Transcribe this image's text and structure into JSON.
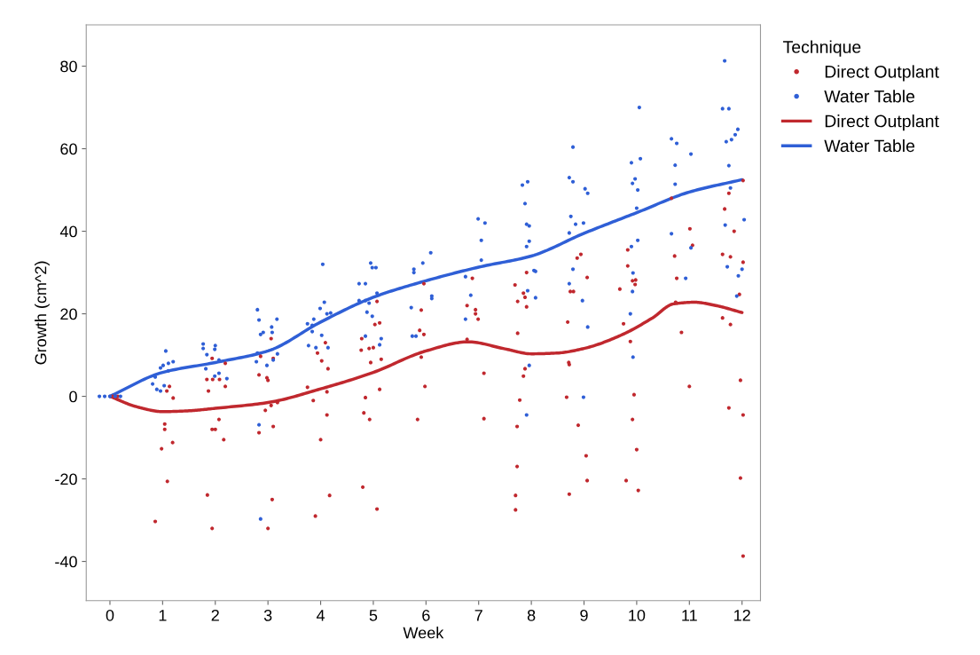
{
  "chart_data": {
    "type": "scatter",
    "xlabel": "Week",
    "ylabel": "Growth (cm^2)",
    "legend_title": "Technique",
    "legend": "top right",
    "grid": false,
    "xlim": [
      -0.45,
      12.35
    ],
    "xticks": [
      0,
      1,
      2,
      3,
      4,
      5,
      6,
      7,
      8,
      9,
      10,
      11,
      12
    ],
    "ylim": [
      -49.5,
      90
    ],
    "yticks": [
      -40,
      -20,
      0,
      20,
      40,
      60,
      80
    ],
    "series": [
      {
        "name": "Direct Outplant",
        "marker": "circle",
        "color": "#c0282e",
        "x": [
          0.05,
          0.1,
          0.15,
          0.86,
          1.09,
          0.98,
          1.04,
          1.04,
          1.19,
          1.2,
          1.13,
          1.08,
          1.94,
          1.85,
          1.94,
          2.0,
          2.07,
          2.16,
          1.87,
          1.84,
          1.95,
          2.08,
          2.19,
          1.94,
          2.19,
          3.0,
          3.08,
          2.83,
          3.1,
          2.95,
          3.06,
          3.18,
          2.83,
          2.98,
          3.0,
          3.06,
          2.86,
          3.1,
          3.9,
          4.17,
          4.0,
          4.12,
          4.12,
          3.86,
          3.75,
          4.02,
          4.09,
          4.14,
          3.94,
          4.8,
          5.07,
          4.82,
          4.93,
          4.85,
          5.12,
          4.95,
          5.15,
          4.77,
          4.92,
          5.0,
          5.03,
          5.12,
          4.78,
          5.07,
          5.84,
          5.98,
          5.91,
          5.88,
          5.96,
          5.91,
          5.96,
          7.1,
          7.1,
          6.78,
          6.78,
          6.94,
          6.94,
          6.99,
          6.88,
          7.7,
          7.7,
          7.73,
          7.73,
          7.78,
          7.85,
          7.88,
          7.74,
          7.74,
          7.69,
          7.85,
          7.88,
          7.91,
          7.91,
          8.72,
          8.67,
          8.89,
          9.04,
          9.06,
          8.72,
          8.69,
          8.74,
          8.8,
          9.06,
          8.87,
          8.94,
          8.71,
          9.88,
          9.95,
          9.92,
          10.0,
          9.8,
          10.03,
          9.75,
          9.68,
          9.83,
          9.83,
          9.92,
          9.98,
          9.97,
          11.0,
          10.85,
          10.74,
          10.66,
          11.01,
          11.06,
          10.76,
          10.72,
          11.97,
          12.02,
          11.97,
          11.75,
          12.02,
          11.63,
          11.78,
          11.63,
          11.78,
          12.02,
          11.85,
          11.67,
          11.75,
          12.02,
          11.95
        ],
        "values": [
          0,
          0,
          0,
          -30.3,
          -20.6,
          -12.7,
          -8,
          -6.7,
          -11.2,
          -0.4,
          2.4,
          1.3,
          -32,
          -23.9,
          -8,
          -8,
          -5.6,
          -10.5,
          1.3,
          4.1,
          4.1,
          4.1,
          2.4,
          9.2,
          8,
          -32,
          -25,
          -8.8,
          -7.3,
          -3.4,
          -2.2,
          -1.5,
          5.2,
          4.5,
          3.9,
          14,
          9.7,
          9.2,
          -29,
          -24,
          -10.5,
          -4.5,
          1.1,
          -1,
          2.2,
          8.6,
          13,
          6.7,
          10.5,
          -22,
          -27.3,
          -4,
          -5.6,
          -0.3,
          1.7,
          8.2,
          9,
          11.2,
          11.6,
          11.8,
          17.4,
          17.8,
          14,
          23,
          -5.6,
          2.4,
          9.5,
          16,
          15,
          20.9,
          27.3,
          -5.4,
          5.6,
          13.8,
          22,
          21,
          20,
          18.7,
          28.6,
          -27.5,
          -24,
          -17,
          -7.3,
          -0.9,
          4.9,
          6.7,
          15.3,
          23,
          27,
          25,
          24,
          21.7,
          30,
          7.7,
          -0.2,
          -7,
          -14.4,
          -20.4,
          -23.7,
          18,
          25.4,
          25.4,
          28.8,
          33.5,
          34.4,
          8.2,
          13.3,
          0.4,
          -5.6,
          -12.9,
          -20.4,
          -22.8,
          17.6,
          26,
          31.6,
          35.5,
          28,
          28.2,
          27.1,
          2.4,
          15.5,
          22.8,
          48,
          40.6,
          36.6,
          28.6,
          34,
          -19.8,
          -38.7,
          3.9,
          -2.8,
          -4.5,
          19,
          17.4,
          34.4,
          33.8,
          32.5,
          40,
          45.4,
          49.2,
          52.3,
          24.7
        ]
      },
      {
        "name": "Water Table",
        "marker": "circle",
        "color": "#2f5fd6",
        "x": [
          -0.2,
          -0.1,
          0,
          0.1,
          0.2,
          1.06,
          1.2,
          1.01,
          0.96,
          1.11,
          1.11,
          0.86,
          0.81,
          0.89,
          1.03,
          0.96,
          1.77,
          2.0,
          1.77,
          1.99,
          1.84,
          2.07,
          1.82,
          1.99,
          2.07,
          2.22,
          2.8,
          2.83,
          3.17,
          3.07,
          3.08,
          2.86,
          2.91,
          2.8,
          3.18,
          2.78,
          3.1,
          2.83,
          2.86,
          2.98,
          4.04,
          4.07,
          3.99,
          4.12,
          4.19,
          4.02,
          4.14,
          3.75,
          3.84,
          3.87,
          3.84,
          3.77,
          3.91,
          4.73,
          4.85,
          4.95,
          4.98,
          5.05,
          4.73,
          4.85,
          4.92,
          5.07,
          4.88,
          4.98,
          4.85,
          5.12,
          5.15,
          5.72,
          5.77,
          5.77,
          5.94,
          6.09,
          6.11,
          6.11,
          5.74,
          5.81,
          6.99,
          7.12,
          7.05,
          7.05,
          6.75,
          6.85,
          6.75,
          7.83,
          7.93,
          7.88,
          7.91,
          7.96,
          7.96,
          7.91,
          8.05,
          8.08,
          7.93,
          8.08,
          7.96,
          7.91,
          8.79,
          8.72,
          8.79,
          9.02,
          9.07,
          8.75,
          8.84,
          8.99,
          8.72,
          8.79,
          8.72,
          8.97,
          9.07,
          8.99,
          10.05,
          9.9,
          10.07,
          9.97,
          9.92,
          10.02,
          10.0,
          10.02,
          9.9,
          9.93,
          9.92,
          9.88,
          9.93,
          10.66,
          10.76,
          11.03,
          10.73,
          10.73,
          10.93,
          11.03,
          10.66,
          11.67,
          11.63,
          11.75,
          11.92,
          11.87,
          11.8,
          11.7,
          11.75,
          11.78,
          11.68,
          12.04,
          11.72,
          12.0,
          11.93,
          11.9
        ],
        "values": [
          0,
          0,
          0,
          0,
          0,
          11,
          8.4,
          7.5,
          6.9,
          8,
          6.2,
          4.7,
          3,
          1.7,
          2.6,
          1.3,
          12.7,
          12.3,
          11.6,
          11.4,
          10.1,
          8.8,
          6.7,
          4.9,
          5.6,
          4.3,
          21,
          18.5,
          18.7,
          16.8,
          15.5,
          15,
          15.5,
          10.5,
          10.3,
          8.4,
          8.8,
          -6.9,
          -29.7,
          7.5,
          32,
          22.8,
          21.3,
          20,
          20.2,
          14.8,
          11.8,
          17.6,
          17.2,
          18.7,
          15.7,
          12.3,
          11.8,
          27.3,
          27.3,
          32.3,
          31.2,
          31.2,
          23.2,
          23.2,
          22.6,
          25,
          20.4,
          19.4,
          14.6,
          12.5,
          14,
          21.5,
          30.8,
          30,
          32.3,
          34.8,
          24.3,
          23.7,
          14.6,
          14.6,
          43,
          42,
          37.8,
          33,
          29,
          24.5,
          18.7,
          51.2,
          52,
          46.7,
          41.7,
          41.3,
          37.6,
          36.3,
          30.5,
          30.3,
          25.6,
          23.9,
          7.5,
          -4.5,
          60.4,
          53,
          52,
          50.3,
          49.2,
          43.6,
          41.7,
          42,
          39.6,
          30.8,
          27.3,
          23.2,
          16.8,
          -0.2,
          70,
          56.6,
          57.6,
          52.7,
          51.6,
          50,
          45.6,
          37.8,
          36.3,
          29.9,
          25.4,
          20,
          9.5,
          62.4,
          61.3,
          58.7,
          56,
          51.4,
          28.6,
          36,
          39.4,
          81.3,
          69.7,
          69.7,
          64.7,
          63.4,
          62.2,
          61.7,
          55.9,
          50.5,
          41.5,
          42.8,
          31.4,
          30.8,
          29.2,
          24.3
        ]
      },
      {
        "name": "Direct Outplant",
        "type": "line",
        "marker": "none",
        "color": "#c0282e",
        "x": [
          0,
          0.5,
          1,
          1.5,
          2,
          3,
          4,
          5,
          6,
          6.8,
          7.5,
          8,
          8.5,
          9,
          9.7,
          10.3,
          10.7,
          11.1,
          11.5,
          12
        ],
        "values": [
          0,
          -2.5,
          -3.7,
          -3.5,
          -2.9,
          -1.5,
          1.8,
          5.8,
          11,
          13.2,
          11.5,
          10.3,
          10.5,
          11.6,
          14.8,
          19,
          22.4,
          22.8,
          22,
          20.3
        ]
      },
      {
        "name": "Water Table",
        "type": "line",
        "marker": "none",
        "color": "#2f5fd6",
        "x": [
          0,
          1,
          2,
          3,
          4,
          5,
          6,
          7,
          8,
          9,
          10,
          11,
          12
        ],
        "values": [
          0,
          5.8,
          8.2,
          11,
          18,
          24,
          28,
          31.3,
          34,
          39.5,
          44.5,
          49.5,
          52.5
        ]
      }
    ]
  }
}
